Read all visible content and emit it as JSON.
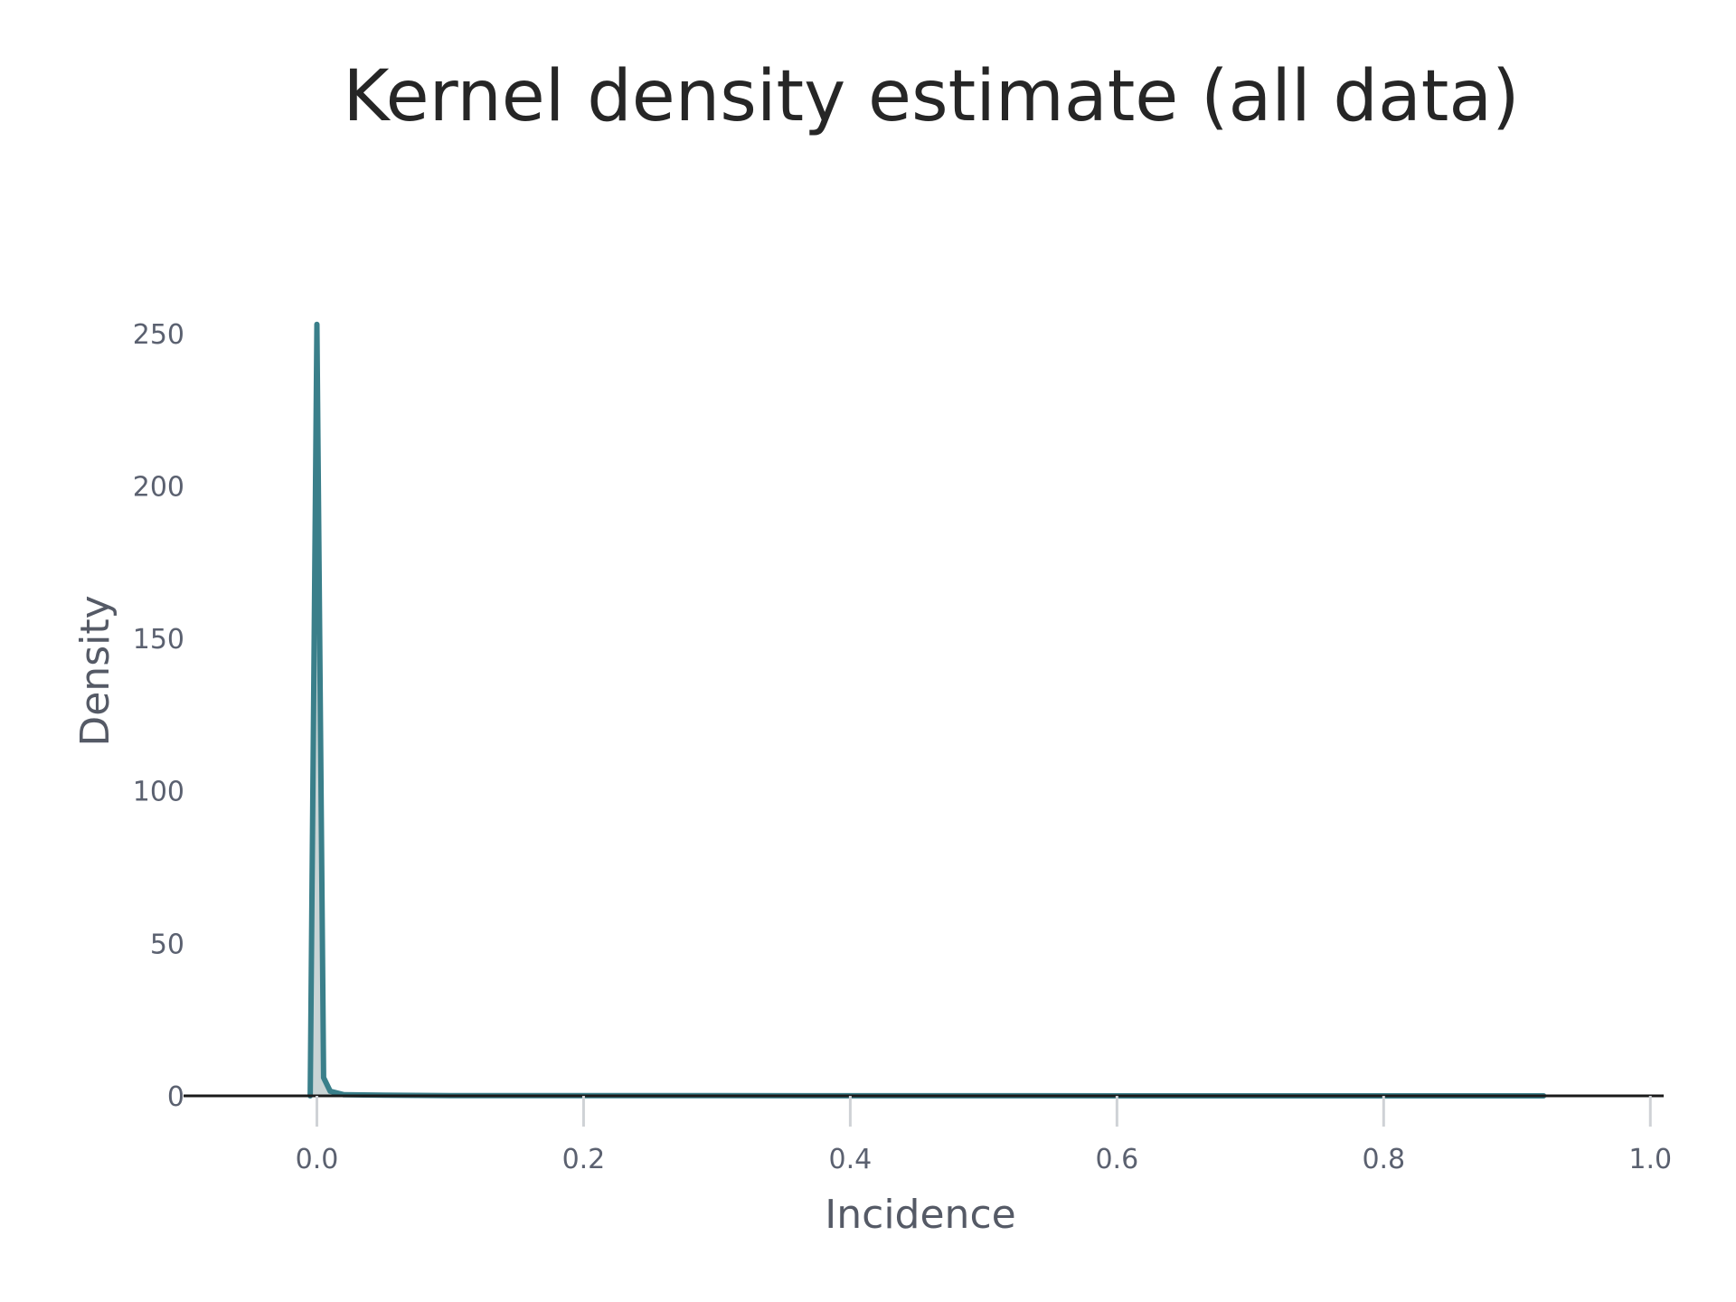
{
  "chart_data": {
    "type": "area",
    "title": "Kernel density estimate (all data)",
    "xlabel": "Incidence",
    "ylabel": "Density",
    "xlim": [
      -0.1,
      1.01
    ],
    "ylim": [
      0,
      255
    ],
    "x_ticks": [
      0.0,
      0.2,
      0.4,
      0.6,
      0.8,
      1.0
    ],
    "x_tick_labels": [
      "0.0",
      "0.2",
      "0.4",
      "0.6",
      "0.8",
      "1.0"
    ],
    "y_ticks": [
      0,
      50,
      100,
      150,
      200,
      250
    ],
    "y_tick_labels": [
      "0",
      "50",
      "100",
      "150",
      "200",
      "250"
    ],
    "grid": false,
    "legend": false,
    "line_color": "#3a7f8a",
    "fill_color": "#c9d4d5",
    "series": [
      {
        "x": [
          -0.005,
          0.0,
          0.005,
          0.01,
          0.02,
          0.05,
          0.1,
          0.3,
          0.5,
          0.7,
          0.92
        ],
        "y": [
          0,
          253,
          6,
          1.5,
          0.4,
          0.2,
          0.1,
          0.05,
          0.02,
          0.01,
          0
        ]
      }
    ]
  }
}
